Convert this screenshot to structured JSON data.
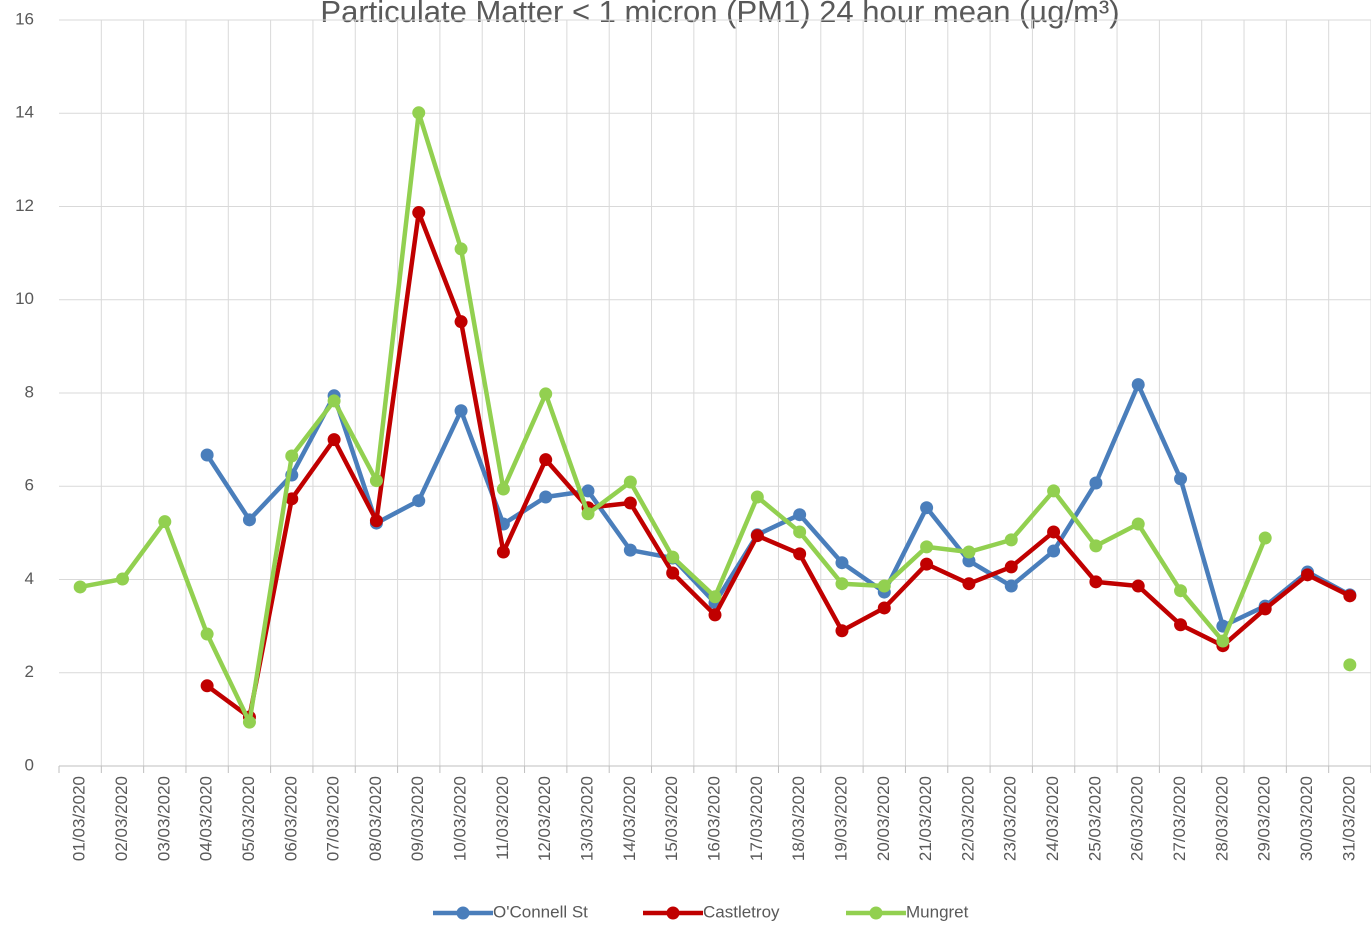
{
  "chart_data": {
    "type": "line",
    "title": "Particulate Matter < 1 micron (PM1) 24 hour mean (µg/m³)",
    "categories": [
      "01/03/2020",
      "02/03/2020",
      "03/03/2020",
      "04/03/2020",
      "05/03/2020",
      "06/03/2020",
      "07/03/2020",
      "08/03/2020",
      "09/03/2020",
      "10/03/2020",
      "11/03/2020",
      "12/03/2020",
      "13/03/2020",
      "14/03/2020",
      "15/03/2020",
      "16/03/2020",
      "17/03/2020",
      "18/03/2020",
      "19/03/2020",
      "20/03/2020",
      "21/03/2020",
      "22/03/2020",
      "23/03/2020",
      "24/03/2020",
      "25/03/2020",
      "26/03/2020",
      "27/03/2020",
      "28/03/2020",
      "29/03/2020",
      "30/03/2020",
      "31/03/2020"
    ],
    "series": [
      {
        "name": "O'Connell St",
        "color": "#4a7ebb",
        "values": [
          null,
          null,
          null,
          6.67,
          5.28,
          6.24,
          7.94,
          5.21,
          5.69,
          7.62,
          5.19,
          5.77,
          5.9,
          4.63,
          4.46,
          3.5,
          4.96,
          5.39,
          4.36,
          3.73,
          5.54,
          4.4,
          3.86,
          4.61,
          6.07,
          8.18,
          6.16,
          3.0,
          3.43,
          4.16,
          3.67
        ]
      },
      {
        "name": "Castletroy",
        "color": "#c00000",
        "values": [
          null,
          null,
          null,
          1.72,
          1.05,
          5.73,
          7.0,
          5.26,
          11.87,
          9.53,
          4.59,
          6.57,
          5.54,
          5.64,
          4.14,
          3.24,
          4.94,
          4.55,
          2.9,
          3.39,
          4.33,
          3.91,
          4.27,
          5.02,
          3.95,
          3.86,
          3.03,
          2.58,
          3.37,
          4.1,
          3.65
        ]
      },
      {
        "name": "Mungret",
        "color": "#92d050",
        "values": [
          3.84,
          4.01,
          5.24,
          2.83,
          0.94,
          6.65,
          7.83,
          6.12,
          14.01,
          11.09,
          5.94,
          7.98,
          5.41,
          6.09,
          4.48,
          3.63,
          5.77,
          5.02,
          3.91,
          3.86,
          4.7,
          4.59,
          4.85,
          5.9,
          4.72,
          5.19,
          3.76,
          2.68,
          4.89,
          null,
          2.17
        ]
      }
    ],
    "ylim": [
      0,
      16
    ],
    "yticks": [
      0,
      2,
      4,
      6,
      8,
      10,
      12,
      14,
      16
    ],
    "grid": true,
    "legend": "bottom"
  }
}
